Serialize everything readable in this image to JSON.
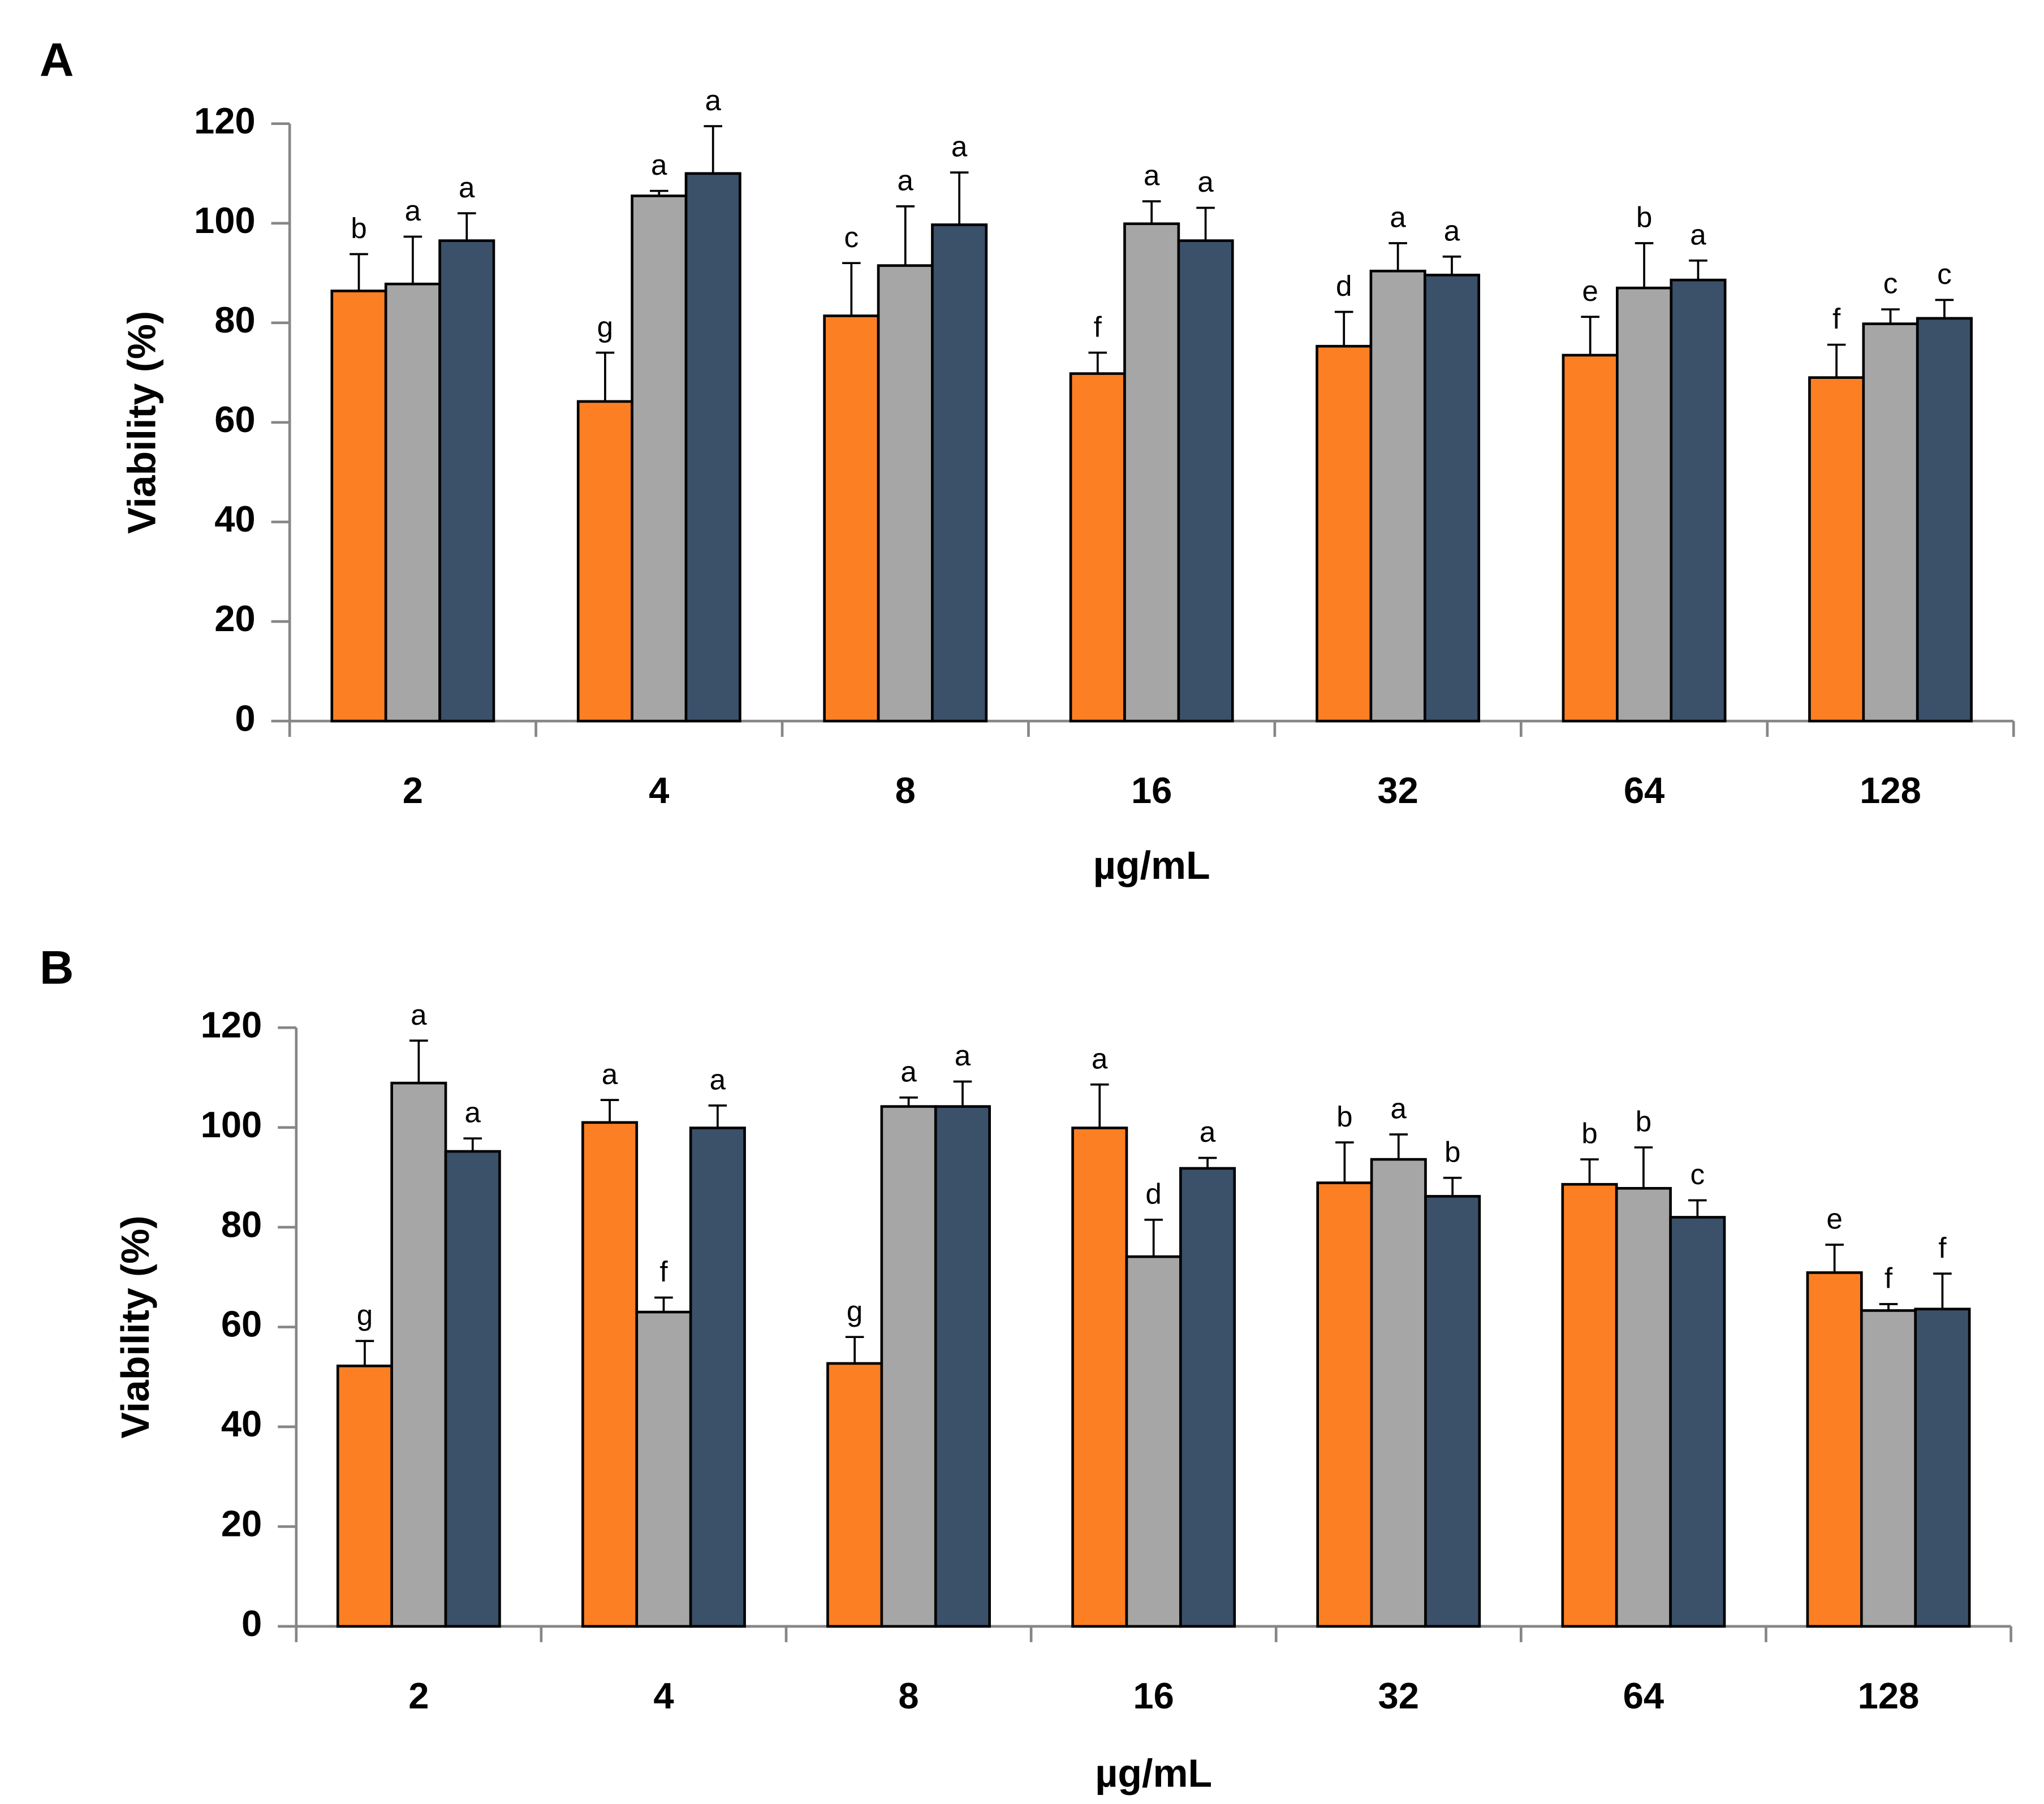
{
  "chart_data": [
    {
      "type": "bar",
      "panel": "A",
      "xlabel": "µg/mL",
      "ylabel": "Viability (%)",
      "categories": [
        "2",
        "4",
        "8",
        "16",
        "32",
        "64",
        "128"
      ],
      "ylim": [
        0,
        120
      ],
      "yticks": [
        0,
        20,
        40,
        60,
        80,
        100,
        120
      ],
      "series": [
        {
          "color": "#fd7f23",
          "values": [
            86.4,
            64.2,
            81.4,
            69.8,
            75.3,
            73.5,
            69
          ],
          "errors": [
            7.4,
            9.8,
            10.6,
            4.2,
            6.9,
            7.7,
            6.6
          ],
          "letters": [
            "b",
            "g",
            "c",
            "f",
            "d",
            "e",
            "f"
          ]
        },
        {
          "color": "#a6a6a6",
          "values": [
            87.8,
            105.5,
            91.5,
            99.9,
            90.4,
            87,
            79.8
          ],
          "errors": [
            9.5,
            1,
            11.9,
            4.5,
            5.6,
            9,
            2.9
          ],
          "letters": [
            "a",
            "a",
            "a",
            "a",
            "a",
            "b",
            "c"
          ]
        },
        {
          "color": "#3b5069",
          "values": [
            96.5,
            110,
            99.7,
            96.5,
            89.6,
            88.6,
            80.9
          ],
          "errors": [
            5.5,
            9.5,
            10.5,
            6.6,
            3.7,
            3.9,
            3.7
          ],
          "letters": [
            "a",
            "a",
            "a",
            "a",
            "a",
            "a",
            "c"
          ]
        }
      ]
    },
    {
      "type": "bar",
      "panel": "B",
      "xlabel": "µg/mL",
      "ylabel": "Viability (%)",
      "categories": [
        "2",
        "4",
        "8",
        "16",
        "32",
        "64",
        "128"
      ],
      "ylim": [
        0,
        120
      ],
      "yticks": [
        0,
        20,
        40,
        60,
        80,
        100,
        120
      ],
      "series": [
        {
          "color": "#fd7f23",
          "values": [
            52.2,
            101,
            52.7,
            99.9,
            88.9,
            88.6,
            70.9
          ],
          "errors": [
            5,
            4.5,
            5.3,
            8.7,
            8.1,
            5,
            5.6
          ],
          "letters": [
            "g",
            "a",
            "g",
            "a",
            "b",
            "b",
            "e"
          ]
        },
        {
          "color": "#a6a6a6",
          "values": [
            108.9,
            63,
            104.2,
            74.1,
            93.6,
            87.8,
            63.3
          ],
          "errors": [
            8.5,
            2.9,
            1.8,
            7.4,
            5,
            8.2,
            1.3
          ],
          "letters": [
            "a",
            "f",
            "a",
            "d",
            "a",
            "b",
            "f"
          ]
        },
        {
          "color": "#3b5069",
          "values": [
            95.2,
            99.9,
            104.2,
            91.8,
            86.2,
            82,
            63.6
          ],
          "errors": [
            2.6,
            4.5,
            5,
            2.1,
            3.7,
            3.4,
            7.1
          ],
          "letters": [
            "a",
            "a",
            "a",
            "a",
            "b",
            "c",
            "f"
          ]
        }
      ]
    }
  ]
}
